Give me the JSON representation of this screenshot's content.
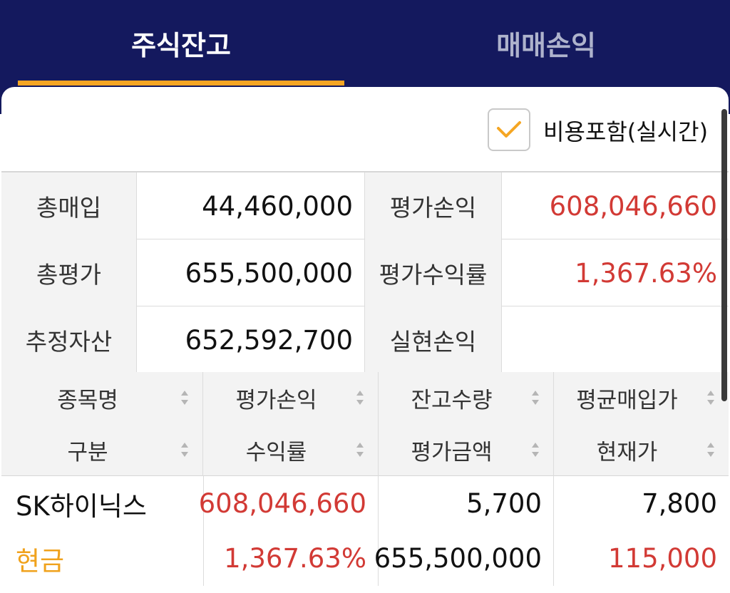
{
  "tabs": [
    {
      "label": "주식잔고",
      "active": true
    },
    {
      "label": "매매손익",
      "active": false
    }
  ],
  "cost_toggle": {
    "label": "비용포함(실시간)",
    "checked": true
  },
  "summary": [
    {
      "label1": "총매입",
      "value1": "44,460,000",
      "label2": "평가손익",
      "value2": "608,046,660"
    },
    {
      "label1": "총평가",
      "value1": "655,500,000",
      "label2": "평가수익률",
      "value2": "1,367.63%"
    },
    {
      "label1": "추정자산",
      "value1": "652,592,700",
      "label2": "실현손익",
      "value2": ""
    }
  ],
  "table": {
    "headers_top": [
      "종목명",
      "평가손익",
      "잔고수량",
      "평균매입가"
    ],
    "headers_bottom": [
      "구분",
      "수익률",
      "평가금액",
      "현재가"
    ],
    "rows": [
      {
        "name": "SK하이닉스",
        "type": "현금",
        "pnl": "608,046,660",
        "return_rate": "1,367.63%",
        "quantity": "5,700",
        "eval_amount": "655,500,000",
        "avg_price": "7,800",
        "current_price": "115,000"
      }
    ]
  },
  "colors": {
    "header_bg": "#14195e",
    "accent_orange": "#f5a623",
    "positive_red": "#d23a35"
  }
}
